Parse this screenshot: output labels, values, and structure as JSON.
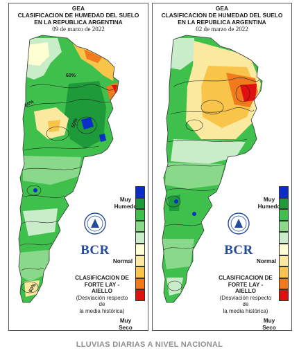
{
  "maps": [
    {
      "header_line1": "GEA",
      "header_line2": "CLASIFICACION DE HUMEDAD DEL SUELO",
      "header_line3": "EN LA REPUBLICA ARGENTINA",
      "date": "09 de marzo de 2022",
      "isoline_labels": [
        "60%",
        "60%",
        "50%",
        "60%"
      ]
    },
    {
      "header_line1": "GEA",
      "header_line2": "CLASIFICACION DE HUMEDAD DEL SUELO",
      "header_line3": "EN LA REPUBLICA ARGENTINA",
      "date": "02 de marzo de 2022",
      "isoline_labels": []
    }
  ],
  "legend": {
    "top_label_1": "Muy",
    "top_label_2": "Humedo",
    "mid_label": "Normal",
    "bottom_label_1": "Muy",
    "bottom_label_2": "Seco",
    "colors": [
      "#0a2fc8",
      "#1e9a3a",
      "#3fc04c",
      "#8ad98a",
      "#c9ecc9",
      "#ffffd4",
      "#fbe9a0",
      "#f8c54a",
      "#f07a1c",
      "#e01010"
    ]
  },
  "source": {
    "title_1": "CLASIFICACION DE",
    "title_2": "FORTE LAY - AIELLO",
    "note_1": "(Desviación respecto de",
    "note_2": "la media histórica)"
  },
  "brand": {
    "name": "BCR",
    "color": "#244a9a"
  },
  "footer": "LLUVIAS DIARIAS A NIVEL NACIONAL"
}
